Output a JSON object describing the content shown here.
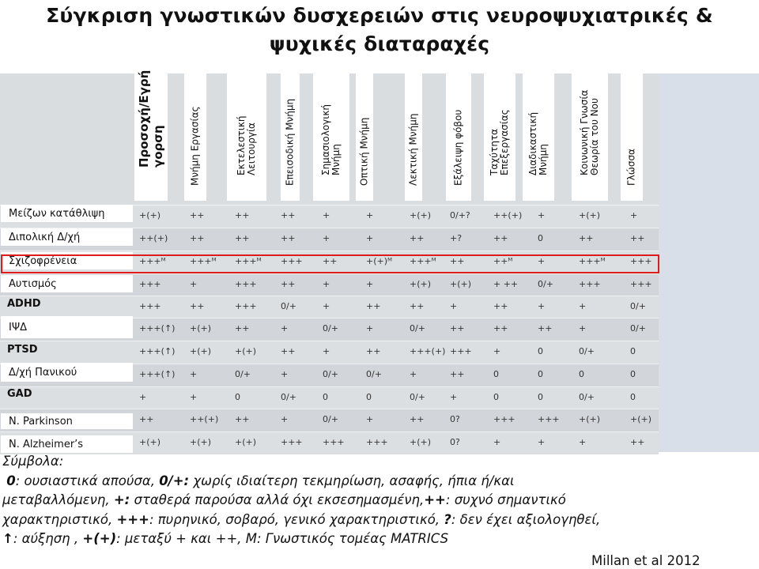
{
  "title_line1": "Σύγκριση γνωστικών δυσχερειών στις νευροψυχιατρικές &",
  "title_line2": "ψυχικές διαταραχές",
  "columns": [
    "Προσοχή/Εγρή\nγορση",
    "Μνήμη Εργασίας",
    "Εκτελεστική\nΛειτουργία",
    "Επεισοδική Μνήμη",
    "Σημασιολογική\nΜνήμη",
    "Οπτική Μνήμη",
    "Λεκτική Μνήμη",
    "Εξάλειψη φόβου",
    "Ταχύτητα\nΕπεξεργασίας",
    "Διαδικαστική\nΜνήμη",
    "Κοινωνική Γνωσία\nΘεωρία του Νου",
    "Γλώσσα"
  ],
  "rows": [
    {
      "label": "Μείζων κατάθλιψη",
      "cells": [
        "+(+)",
        "++",
        "++",
        "++",
        "+",
        "+",
        "+(+)",
        "0/+?",
        "++(+)",
        "+",
        "+(+)",
        "+"
      ]
    },
    {
      "label": "Διπολική Δ/χή",
      "cells": [
        "++(+)",
        "++",
        "++",
        "++",
        "+",
        "+",
        "++",
        "+?",
        "++",
        "0",
        "++",
        "++"
      ]
    },
    {
      "label": "Σχιζοφρένεια",
      "cells": [
        "+++ᴹ",
        "+++ᴹ",
        "+++ᴹ",
        "+++",
        "++",
        "+(+)ᴹ",
        "+++ᴹ",
        "++",
        "++ᴹ",
        "+",
        "+++ᴹ",
        "+++"
      ]
    },
    {
      "label": "Αυτισμός",
      "cells": [
        "+++",
        "+",
        "+++",
        "++",
        "+",
        "+",
        "+(+)",
        "+(+)",
        "+ ++",
        "0/+",
        "+++",
        "+++"
      ]
    },
    {
      "label": "ADHD",
      "cells": [
        "+++",
        "++",
        "+++",
        "0/+",
        "+",
        "++",
        "++",
        "+",
        "++",
        "+",
        "+",
        "0/+"
      ]
    },
    {
      "label": "ΙΨΔ",
      "cells": [
        "+++(↑)",
        "+(+)",
        "++",
        "+",
        "0/+",
        "+",
        "0/+",
        "++",
        "++",
        "++",
        "+",
        "0/+"
      ]
    },
    {
      "label": "PTSD",
      "cells": [
        "+++(↑)",
        "+(+)",
        "+(+)",
        "++",
        "+",
        "++",
        "+++(+)",
        "+++",
        "+",
        "0",
        "0/+",
        "0"
      ]
    },
    {
      "label": "Δ/χή Πανικού",
      "cells": [
        "+++(↑)",
        "+",
        "0/+",
        "+",
        "0/+",
        "0/+",
        "+",
        "++",
        "0",
        "0",
        "0",
        "0"
      ]
    },
    {
      "label": "GAD",
      "cells": [
        "+",
        "+",
        "0",
        "0/+",
        "0",
        "0",
        "0/+",
        "+",
        "0",
        "0",
        "0/+",
        "0"
      ]
    },
    {
      "label": "N. Parkinson",
      "cells": [
        "++",
        "++(+)",
        "++",
        "+",
        "0/+",
        "+",
        "++",
        "0?",
        "+++",
        "+++",
        "+(+)",
        "+(+)"
      ]
    },
    {
      "label": "N. Alzheimer’s",
      "cells": [
        "+(+)",
        "+(+)",
        "+(+)",
        "+++",
        "+++",
        "+++",
        "+(+)",
        "0?",
        "+",
        "+",
        "+",
        "++"
      ]
    }
  ],
  "legend": {
    "heading": "Σύμβολα:",
    "s0": "0",
    "d0": ": ουσιαστικά απούσα, ",
    "s1": "0/+:",
    "d1": " χωρίς ιδιαίτερη τεκμηρίωση, ασαφής, ήπια ή/και",
    "d1b": "μεταβαλλόμενη, ",
    "s2": "+:",
    "d2": " σταθερά παρούσα αλλά όχι εκσεσημασμένη,",
    "s3": "++",
    "d3": ": συχνό σημαντικό",
    "d3b": "χαρακτηριστικό, ",
    "s4": "+++",
    "d4": ": πυρηνικό, σοβαρό, γενικό χαρακτηριστικό, ",
    "s5": "?",
    "d5": ": δεν έχει αξιολογηθεί,",
    "s6": "↑",
    "d6": ": αύξηση , ",
    "s7": "+(+)",
    "d7": ": μεταξύ + και ++, Μ: Γνωστικός τομέας MATRICS"
  },
  "citation": "Millan et al 2012",
  "colors": {
    "highlight": "#e01b1b",
    "table_bg": "#dadde0",
    "row_alt": "#d3d6d9",
    "panel": "#d9dfe8"
  }
}
